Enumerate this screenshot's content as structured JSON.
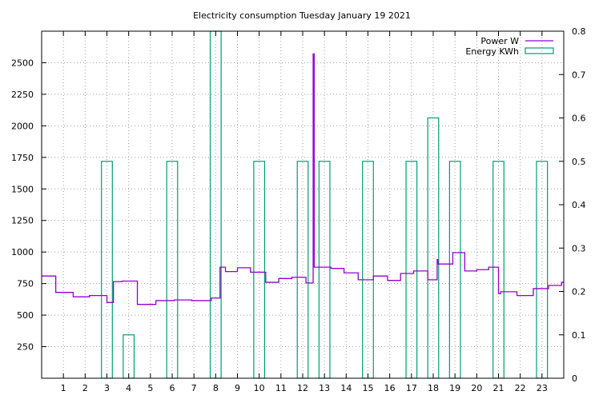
{
  "chart_data": {
    "type": "line",
    "title": "Electricity consumption Tuesday January 19 2021",
    "xlim": [
      0,
      24
    ],
    "x_ticks": [
      1,
      2,
      3,
      4,
      5,
      6,
      7,
      8,
      9,
      10,
      11,
      12,
      13,
      14,
      15,
      16,
      17,
      18,
      19,
      20,
      21,
      22,
      23
    ],
    "y_left": {
      "lim": [
        0,
        2750
      ],
      "ticks": [
        250,
        500,
        750,
        1000,
        1250,
        1500,
        1750,
        2000,
        2250,
        2500
      ]
    },
    "y_right": {
      "lim": [
        0,
        0.8
      ],
      "ticks": [
        0,
        0.1,
        0.2,
        0.3,
        0.4,
        0.5,
        0.6,
        0.7,
        0.8
      ]
    },
    "grid": true,
    "legend_position": "top-right",
    "colors": {
      "power": "#9400d3",
      "energy": "#009e73"
    },
    "series": [
      {
        "name": "Power W",
        "axis": "left",
        "style": "steps",
        "points": [
          [
            0,
            810
          ],
          [
            0.65,
            680
          ],
          [
            1.45,
            645
          ],
          [
            2.2,
            655
          ],
          [
            3.0,
            600
          ],
          [
            3.3,
            765
          ],
          [
            3.7,
            770
          ],
          [
            4.4,
            585
          ],
          [
            5.25,
            615
          ],
          [
            6.1,
            620
          ],
          [
            6.9,
            615
          ],
          [
            7.8,
            635
          ],
          [
            8.2,
            880
          ],
          [
            8.45,
            845
          ],
          [
            9.0,
            875
          ],
          [
            9.6,
            840
          ],
          [
            10.3,
            760
          ],
          [
            10.9,
            790
          ],
          [
            11.5,
            800
          ],
          [
            12.15,
            755
          ],
          [
            12.48,
            2570
          ],
          [
            12.53,
            880
          ],
          [
            13.3,
            870
          ],
          [
            13.9,
            835
          ],
          [
            14.55,
            780
          ],
          [
            15.25,
            810
          ],
          [
            15.9,
            775
          ],
          [
            16.5,
            830
          ],
          [
            17.1,
            850
          ],
          [
            17.75,
            780
          ],
          [
            18.18,
            940
          ],
          [
            18.22,
            905
          ],
          [
            18.9,
            995
          ],
          [
            19.45,
            850
          ],
          [
            20.0,
            860
          ],
          [
            20.55,
            880
          ],
          [
            21.0,
            670
          ],
          [
            21.1,
            685
          ],
          [
            21.85,
            655
          ],
          [
            22.6,
            710
          ],
          [
            23.3,
            735
          ],
          [
            23.9,
            760
          ],
          [
            24,
            760
          ]
        ]
      },
      {
        "name": "Energy KWh",
        "axis": "right",
        "style": "boxes",
        "box_width": 0.5,
        "points": [
          [
            3,
            0.5
          ],
          [
            4,
            0.1
          ],
          [
            6,
            0.5
          ],
          [
            8,
            0.8
          ],
          [
            10,
            0.5
          ],
          [
            12,
            0.5
          ],
          [
            13,
            0.5
          ],
          [
            15,
            0.5
          ],
          [
            17,
            0.5
          ],
          [
            18,
            0.6
          ],
          [
            19,
            0.5
          ],
          [
            21,
            0.5
          ],
          [
            23,
            0.5
          ]
        ]
      }
    ]
  }
}
